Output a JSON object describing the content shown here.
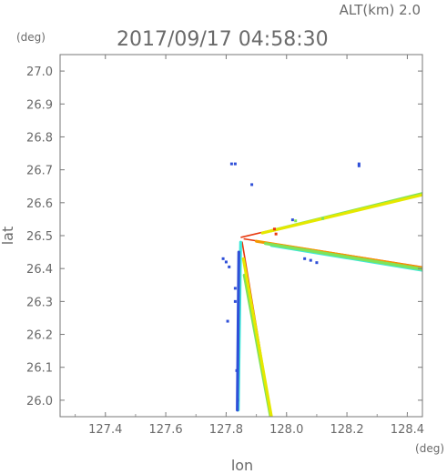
{
  "header": {
    "altitude_label": "ALT(km) 2.0",
    "timestamp": "2017/09/17 04:58:30"
  },
  "chart_data": {
    "type": "scatter",
    "xlabel": "lon",
    "ylabel": "lat",
    "x_unit": "(deg)",
    "y_unit": "(deg)",
    "xlim": [
      127.25,
      128.45
    ],
    "ylim": [
      25.95,
      27.05
    ],
    "x_ticks": [
      127.4,
      127.6,
      127.8,
      128.0,
      128.2,
      128.4
    ],
    "x_tick_labels": [
      "127.4",
      "127.6",
      "127.8",
      "128.0",
      "128.2",
      "128.4"
    ],
    "y_ticks": [
      26.0,
      26.1,
      26.2,
      26.3,
      26.4,
      26.5,
      26.6,
      26.7,
      26.8,
      26.9,
      27.0
    ],
    "y_tick_labels": [
      "26.0",
      "26.1",
      "26.2",
      "26.3",
      "26.4",
      "26.5",
      "26.6",
      "26.7",
      "26.8",
      "26.9",
      "27.0"
    ],
    "grid": false,
    "colors": {
      "red": "#e8380d",
      "orange": "#f39800",
      "yellow": "#e5e800",
      "green": "#7fe35a",
      "cyan": "#3fe8d8",
      "blue": "#2f4fd8"
    },
    "beams": [
      {
        "color": "red",
        "x": [
          127.85,
          128.45
        ],
        "y": [
          26.495,
          26.625
        ]
      },
      {
        "color": "green",
        "x": [
          127.95,
          128.45
        ],
        "y": [
          26.515,
          26.628
        ]
      },
      {
        "color": "yellow",
        "x": [
          127.92,
          128.45
        ],
        "y": [
          26.508,
          26.624
        ]
      },
      {
        "color": "red",
        "x": [
          127.86,
          128.45
        ],
        "y": [
          26.49,
          26.405
        ]
      },
      {
        "color": "orange",
        "x": [
          127.9,
          128.45
        ],
        "y": [
          26.483,
          26.402
        ]
      },
      {
        "color": "cyan",
        "x": [
          127.95,
          128.45
        ],
        "y": [
          26.47,
          26.395
        ]
      },
      {
        "color": "green",
        "x": [
          127.93,
          128.45
        ],
        "y": [
          26.476,
          26.398
        ]
      },
      {
        "color": "red",
        "x": [
          127.853,
          127.95
        ],
        "y": [
          26.48,
          25.95
        ]
      },
      {
        "color": "green",
        "x": [
          127.86,
          127.947
        ],
        "y": [
          26.38,
          25.95
        ]
      },
      {
        "color": "yellow",
        "x": [
          127.857,
          127.95
        ],
        "y": [
          26.43,
          25.95
        ]
      },
      {
        "color": "cyan",
        "x": [
          127.848,
          127.84
        ],
        "y": [
          26.48,
          25.97
        ]
      },
      {
        "color": "blue",
        "x": [
          127.842,
          127.837
        ],
        "y": [
          26.45,
          25.97
        ]
      }
    ],
    "points": [
      {
        "x": 127.818,
        "y": 26.718,
        "color": "blue"
      },
      {
        "x": 127.83,
        "y": 26.718,
        "color": "blue"
      },
      {
        "x": 127.885,
        "y": 26.655,
        "color": "blue"
      },
      {
        "x": 128.24,
        "y": 26.718,
        "color": "blue"
      },
      {
        "x": 128.24,
        "y": 26.712,
        "color": "blue"
      },
      {
        "x": 127.79,
        "y": 26.43,
        "color": "blue"
      },
      {
        "x": 127.8,
        "y": 26.42,
        "color": "blue"
      },
      {
        "x": 127.81,
        "y": 26.405,
        "color": "blue"
      },
      {
        "x": 127.805,
        "y": 26.24,
        "color": "blue"
      },
      {
        "x": 127.83,
        "y": 26.34,
        "color": "blue"
      },
      {
        "x": 127.83,
        "y": 26.3,
        "color": "blue"
      },
      {
        "x": 128.02,
        "y": 26.548,
        "color": "blue"
      },
      {
        "x": 128.03,
        "y": 26.545,
        "color": "green"
      },
      {
        "x": 128.12,
        "y": 26.552,
        "color": "green"
      },
      {
        "x": 128.06,
        "y": 26.43,
        "color": "blue"
      },
      {
        "x": 128.08,
        "y": 26.425,
        "color": "blue"
      },
      {
        "x": 128.1,
        "y": 26.418,
        "color": "blue"
      },
      {
        "x": 127.96,
        "y": 26.52,
        "color": "red"
      },
      {
        "x": 127.965,
        "y": 26.505,
        "color": "red"
      },
      {
        "x": 127.835,
        "y": 26.09,
        "color": "blue"
      },
      {
        "x": 127.838,
        "y": 26.0,
        "color": "blue"
      }
    ]
  }
}
